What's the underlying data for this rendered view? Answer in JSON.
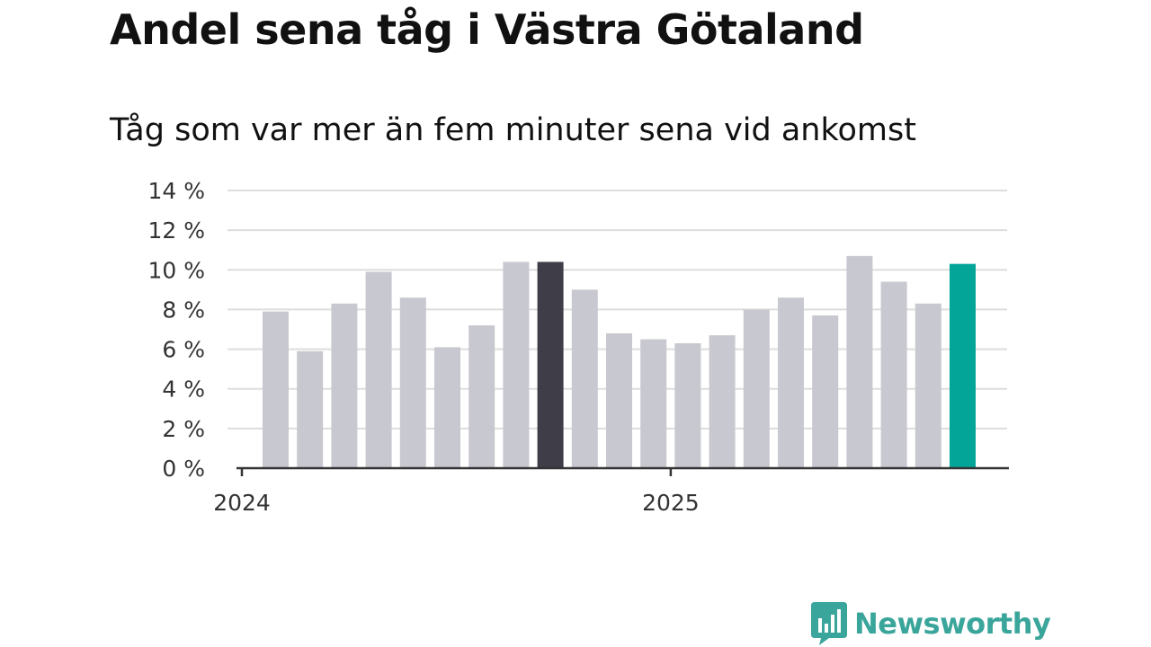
{
  "title": "Andel sena tåg i Västra Götaland",
  "subtitle": "Tåg som var mer än fem minuter sena vid ankomst",
  "brand": {
    "name": "Newsworthy",
    "color": "#3aa59b"
  },
  "chart_data": {
    "type": "bar",
    "title": "Andel sena tåg i Västra Götaland",
    "subtitle": "Tåg som var mer än fem minuter sena vid ankomst",
    "xlabel": "",
    "ylabel": "",
    "ylim": [
      0,
      14
    ],
    "yticks": [
      {
        "value": 0,
        "label": "0 %"
      },
      {
        "value": 2,
        "label": "2 %"
      },
      {
        "value": 4,
        "label": "4 %"
      },
      {
        "value": 6,
        "label": "6 %"
      },
      {
        "value": 8,
        "label": "8 %"
      },
      {
        "value": 10,
        "label": "10 %"
      },
      {
        "value": 12,
        "label": "12 %"
      },
      {
        "value": 14,
        "label": "14 %"
      }
    ],
    "xticks": [
      {
        "index": 0,
        "label": "2024"
      },
      {
        "index": 12,
        "label": "2025"
      }
    ],
    "grid": true,
    "values": [
      7.9,
      5.9,
      8.3,
      9.9,
      8.6,
      6.1,
      7.2,
      10.4,
      10.4,
      9.0,
      6.8,
      6.5,
      6.3,
      6.7,
      8.0,
      8.6,
      7.7,
      10.7,
      9.4,
      8.3,
      10.3
    ],
    "colors": {
      "default": "#c8c8d0",
      "highlight": "#3e3d48",
      "latest": "#02a598",
      "grid": "#dddddd",
      "axis": "#333333"
    },
    "highlight_index": 8,
    "latest_index": 20
  }
}
